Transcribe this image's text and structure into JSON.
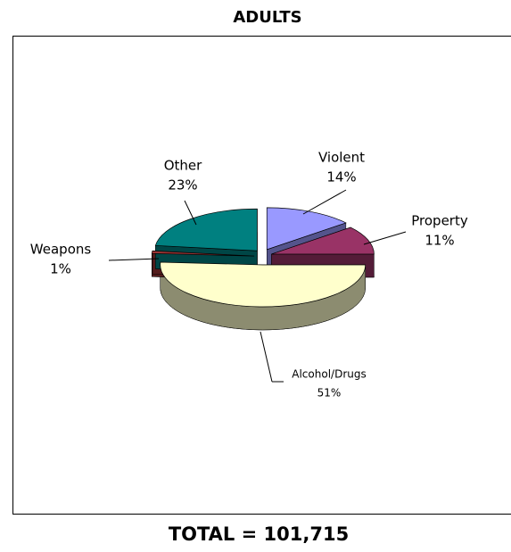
{
  "chart_data": {
    "type": "pie",
    "title": "ADULTS",
    "footer": "TOTAL = 101,715",
    "categories": [
      "Violent",
      "Property",
      "Alcohol/Drugs",
      "Weapons",
      "Other"
    ],
    "values": [
      14,
      11,
      51,
      1,
      23
    ],
    "value_labels": [
      "14%",
      "11%",
      "51%",
      "1%",
      "23%"
    ],
    "colors": [
      "#9999ff",
      "#993366",
      "#ffffcc",
      "#993333",
      "#008080"
    ]
  }
}
